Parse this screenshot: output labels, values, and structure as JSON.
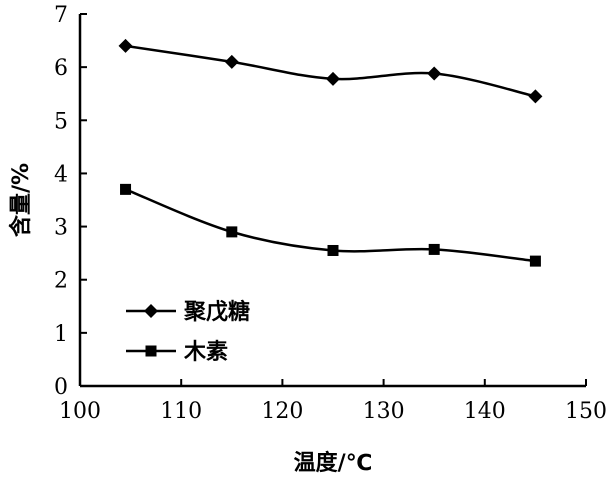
{
  "chart_data": {
    "type": "line",
    "x": [
      104.5,
      115,
      125,
      135,
      145
    ],
    "series": [
      {
        "name": "聚戊糖",
        "marker": "diamond",
        "values": [
          6.4,
          6.1,
          5.78,
          5.88,
          5.45
        ]
      },
      {
        "name": "木素",
        "marker": "square",
        "values": [
          3.7,
          2.9,
          2.55,
          2.57,
          2.35
        ]
      }
    ],
    "xlabel": "温度/℃",
    "ylabel": "含量/%",
    "xlim": [
      100,
      150
    ],
    "ylim": [
      0,
      7
    ],
    "xticks": [
      "100",
      "110",
      "120",
      "130",
      "140",
      "150"
    ],
    "yticks": [
      "0",
      "1",
      "2",
      "3",
      "4",
      "5",
      "6",
      "7"
    ],
    "grid": false,
    "legend_position": "lower-left",
    "line_color": "#000000"
  }
}
